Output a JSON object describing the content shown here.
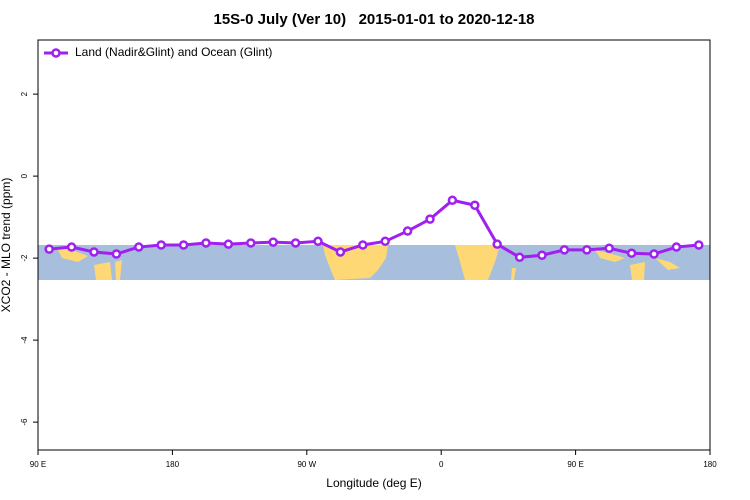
{
  "chart_data": {
    "type": "line",
    "title": "15S-0 July (Ver 10)   2015-01-01 to 2020-12-18",
    "x_label": "Longitude (deg E)",
    "y_label": "XCO2 - MLO trend (ppm)",
    "x": [
      97.5,
      112.5,
      127.5,
      142.5,
      157.5,
      172.5,
      187.5,
      202.5,
      217.5,
      232.5,
      247.5,
      262.5,
      277.5,
      292.5,
      307.5,
      322.5,
      337.5,
      352.5,
      367.5,
      382.5,
      397.5,
      412.5,
      427.5,
      442.5,
      457.5,
      472.5,
      487.5,
      502.5,
      517.5,
      532.5
    ],
    "series": [
      {
        "name": "Land (Nadir&Glint) and Ocean (Glint)",
        "color": "#a020f0",
        "values": [
          -1.78,
          -1.73,
          -1.85,
          -1.9,
          -1.73,
          -1.68,
          -1.68,
          -1.63,
          -1.66,
          -1.63,
          -1.61,
          -1.63,
          -1.59,
          -1.85,
          -1.68,
          -1.59,
          -1.34,
          -1.05,
          -0.59,
          -0.71,
          -1.66,
          -1.98,
          -1.93,
          -1.8,
          -1.8,
          -1.76,
          -1.88,
          -1.9,
          -1.73,
          -1.68
        ]
      }
    ],
    "xlim": [
      90,
      540
    ],
    "xticks": [
      {
        "value": 90,
        "label": "90 E"
      },
      180,
      {
        "value": 270,
        "label": "90 W"
      },
      {
        "value": 360,
        "label": "0"
      },
      {
        "value": 450,
        "label": "90 E"
      },
      {
        "value": 540,
        "label": "180"
      }
    ],
    "ylim": [
      -6.68,
      3.32
    ],
    "yticks": [
      -6,
      -4,
      -2,
      0,
      2
    ],
    "legend": "top-left"
  }
}
